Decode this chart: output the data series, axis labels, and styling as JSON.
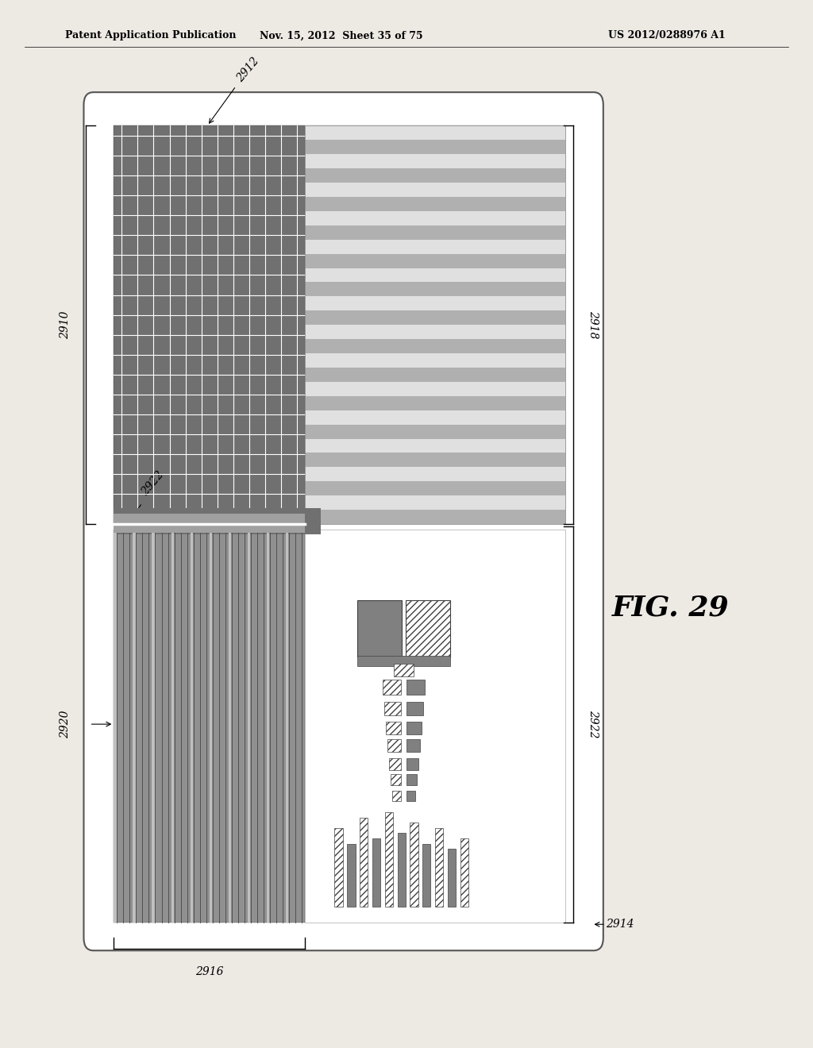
{
  "bg_color": "#ede9e3",
  "header_text": "Patent Application Publication",
  "header_date": "Nov. 15, 2012  Sheet 35 of 75",
  "header_patent": "US 2012/0288976 A1",
  "fig_label": "FIG. 29"
}
